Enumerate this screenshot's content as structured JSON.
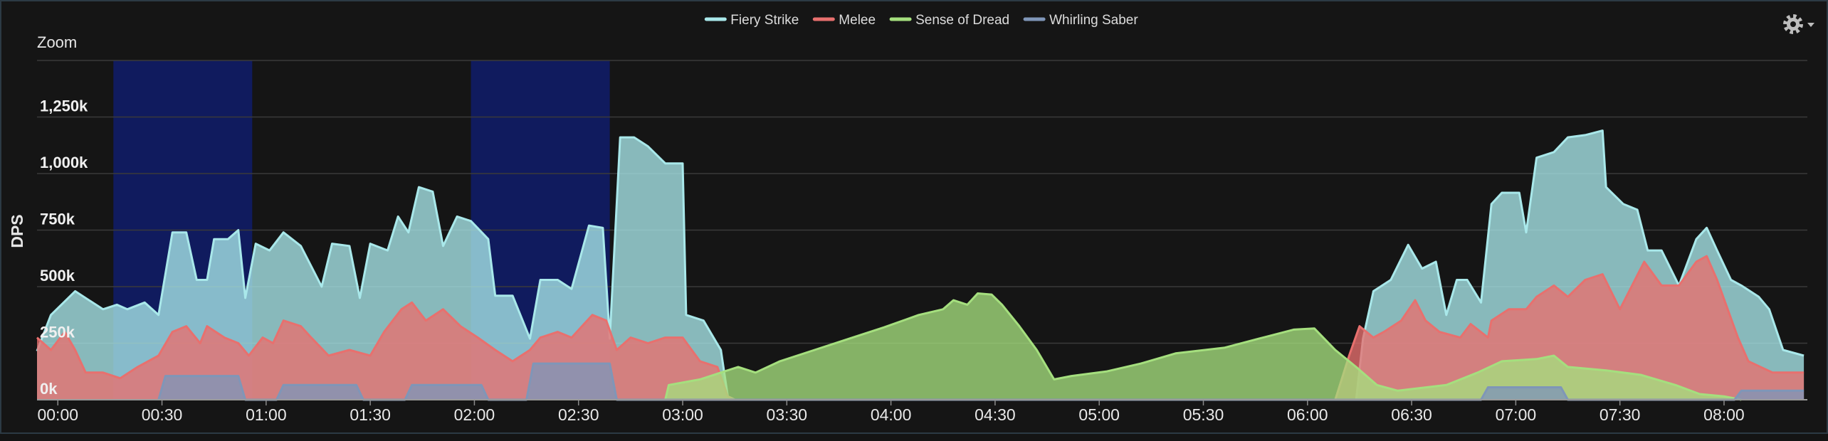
{
  "chart_data": {
    "type": "area",
    "y_axis_label": "DPS",
    "zoom_label": "Zoom",
    "xlim": [
      -6,
      504
    ],
    "xticks": [
      {
        "value": 0,
        "label": "00:00"
      },
      {
        "value": 30,
        "label": "00:30"
      },
      {
        "value": 60,
        "label": "01:00"
      },
      {
        "value": 90,
        "label": "01:30"
      },
      {
        "value": 120,
        "label": "02:00"
      },
      {
        "value": 150,
        "label": "02:30"
      },
      {
        "value": 180,
        "label": "03:00"
      },
      {
        "value": 210,
        "label": "03:30"
      },
      {
        "value": 240,
        "label": "04:00"
      },
      {
        "value": 270,
        "label": "04:30"
      },
      {
        "value": 300,
        "label": "05:00"
      },
      {
        "value": 330,
        "label": "05:30"
      },
      {
        "value": 360,
        "label": "06:00"
      },
      {
        "value": 390,
        "label": "06:30"
      },
      {
        "value": 420,
        "label": "07:00"
      },
      {
        "value": 450,
        "label": "07:30"
      },
      {
        "value": 480,
        "label": "08:00"
      }
    ],
    "ylim": [
      0,
      1500000
    ],
    "yticks": [
      {
        "value": 0,
        "label": "0k"
      },
      {
        "value": 250000,
        "label": "250k"
      },
      {
        "value": 500000,
        "label": "500k"
      },
      {
        "value": 750000,
        "label": "750k"
      },
      {
        "value": 1000000,
        "label": "1,000k"
      },
      {
        "value": 1250000,
        "label": "1,250k"
      }
    ],
    "grid": true,
    "legend": "top",
    "bands": [
      [
        16,
        56
      ],
      [
        119,
        159
      ]
    ],
    "band_color": "#101b5e",
    "series": [
      {
        "name": "Fiery Strike",
        "color": "#a9e8ea",
        "x": [
          -6,
          -2,
          5,
          10,
          13,
          17,
          20,
          25,
          29,
          33,
          37,
          40,
          43,
          45,
          49,
          52,
          54,
          57,
          61,
          65,
          70,
          76,
          79,
          84,
          87,
          90,
          95,
          98,
          101,
          104,
          108,
          111,
          115,
          119,
          124,
          126,
          131,
          136,
          139,
          144,
          148,
          153,
          157,
          159,
          162,
          166,
          170,
          175,
          180,
          181,
          186,
          191,
          193,
          195,
          374,
          376,
          379,
          384,
          389,
          393,
          397,
          400,
          403,
          406,
          410,
          413,
          416,
          421,
          423,
          426,
          431,
          435,
          440,
          445,
          446,
          451,
          455,
          458,
          462,
          467,
          472,
          475,
          478,
          482,
          485,
          490,
          493,
          497,
          503
        ],
        "values": [
          215000,
          375000,
          480000,
          430000,
          400000,
          420000,
          400000,
          430000,
          375000,
          740000,
          740000,
          530000,
          530000,
          710000,
          710000,
          750000,
          450000,
          690000,
          660000,
          740000,
          680000,
          500000,
          690000,
          680000,
          450000,
          690000,
          660000,
          810000,
          740000,
          940000,
          920000,
          680000,
          810000,
          790000,
          710000,
          460000,
          460000,
          270000,
          530000,
          530000,
          490000,
          770000,
          760000,
          270000,
          1160000,
          1160000,
          1120000,
          1045000,
          1045000,
          375000,
          350000,
          220000,
          15000,
          0,
          0,
          270000,
          480000,
          530000,
          685000,
          580000,
          610000,
          375000,
          530000,
          530000,
          430000,
          865000,
          915000,
          915000,
          740000,
          1070000,
          1095000,
          1160000,
          1170000,
          1190000,
          940000,
          865000,
          840000,
          660000,
          660000,
          505000,
          710000,
          760000,
          660000,
          530000,
          505000,
          455000,
          400000,
          220000,
          195000
        ]
      },
      {
        "name": "Melee",
        "color": "#e8706e",
        "x": [
          -6,
          -2,
          2,
          5,
          8,
          13,
          18,
          23,
          29,
          33,
          37,
          41,
          43,
          48,
          52,
          55,
          59,
          62,
          65,
          70,
          73,
          78,
          84,
          90,
          94,
          99,
          102,
          106,
          111,
          116,
          121,
          126,
          131,
          136,
          139,
          144,
          148,
          151,
          154,
          158,
          161,
          165,
          170,
          175,
          180,
          185,
          190,
          193,
          195,
          368,
          372,
          375,
          379,
          382,
          387,
          391,
          394,
          398,
          404,
          407,
          412,
          413,
          418,
          423,
          426,
          431,
          435,
          440,
          445,
          450,
          457,
          462,
          467,
          472,
          475,
          478,
          484,
          487,
          494,
          503
        ],
        "values": [
          275000,
          220000,
          300000,
          220000,
          120000,
          120000,
          95000,
          145000,
          195000,
          300000,
          325000,
          250000,
          325000,
          275000,
          250000,
          195000,
          275000,
          250000,
          350000,
          325000,
          275000,
          195000,
          220000,
          195000,
          300000,
          400000,
          430000,
          350000,
          400000,
          325000,
          275000,
          220000,
          170000,
          220000,
          275000,
          300000,
          275000,
          325000,
          375000,
          350000,
          220000,
          275000,
          250000,
          275000,
          275000,
          170000,
          145000,
          15000,
          0,
          0,
          195000,
          325000,
          275000,
          300000,
          350000,
          440000,
          350000,
          300000,
          275000,
          335000,
          275000,
          350000,
          400000,
          400000,
          455000,
          505000,
          455000,
          530000,
          555000,
          400000,
          610000,
          505000,
          505000,
          610000,
          635000,
          530000,
          275000,
          170000,
          120000,
          120000
        ]
      },
      {
        "name": "Sense of Dread",
        "color": "#a5df7e",
        "x": [
          175,
          176,
          185,
          191,
          196,
          201,
          208,
          218,
          228,
          238,
          248,
          255,
          258,
          262,
          265,
          269,
          272,
          277,
          282,
          287,
          292,
          302,
          312,
          322,
          336,
          346,
          356,
          362,
          368,
          374,
          380,
          386,
          400,
          409,
          416,
          426,
          431,
          435,
          446,
          456,
          466,
          473,
          480,
          485
        ],
        "values": [
          0,
          65000,
          90000,
          120000,
          145000,
          120000,
          170000,
          220000,
          270000,
          320000,
          375000,
          400000,
          440000,
          420000,
          470000,
          465000,
          420000,
          325000,
          220000,
          90000,
          105000,
          125000,
          160000,
          205000,
          230000,
          270000,
          310000,
          315000,
          220000,
          145000,
          65000,
          40000,
          65000,
          120000,
          170000,
          180000,
          195000,
          145000,
          130000,
          110000,
          65000,
          25000,
          15000,
          0
        ]
      },
      {
        "name": "Whirling Saber",
        "color": "#7f96b8",
        "x": [
          29,
          31,
          52,
          54,
          63,
          65,
          86,
          88,
          100,
          102,
          122,
          124,
          135,
          137,
          159,
          161,
          410,
          412,
          433,
          435,
          483,
          485,
          503
        ],
        "values": [
          0,
          105000,
          105000,
          0,
          0,
          65000,
          65000,
          0,
          0,
          65000,
          65000,
          0,
          0,
          160000,
          160000,
          0,
          0,
          55000,
          55000,
          0,
          0,
          40000,
          40000
        ]
      }
    ]
  }
}
